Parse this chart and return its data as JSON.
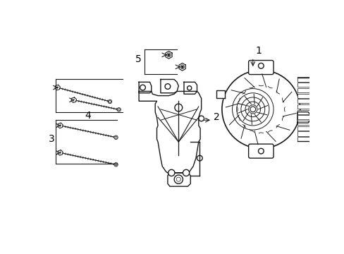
{
  "bg_color": "#ffffff",
  "line_color": "#1a1a1a",
  "text_color": "#000000",
  "figsize": [
    4.89,
    3.6
  ],
  "dpi": 100,
  "label_fontsize": 10
}
